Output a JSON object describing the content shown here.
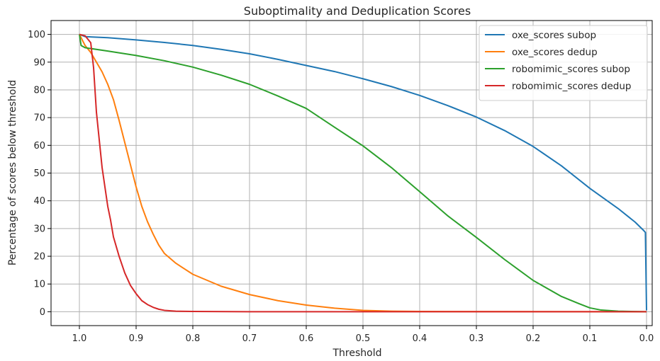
{
  "chart_data": {
    "type": "line",
    "title": "Suboptimality and Deduplication Scores",
    "xlabel": "Threshold",
    "ylabel": "Percentage of scores below threshold",
    "xlim": [
      1.05,
      -0.01
    ],
    "ylim": [
      -5,
      105
    ],
    "x_reversed": true,
    "grid": true,
    "legend_position": "top-right",
    "xticks": [
      1.0,
      0.9,
      0.8,
      0.7,
      0.6,
      0.5,
      0.4,
      0.3,
      0.2,
      0.1,
      0.0
    ],
    "xtick_labels": [
      "1.0",
      "0.9",
      "0.8",
      "0.7",
      "0.6",
      "0.5",
      "0.4",
      "0.3",
      "0.2",
      "0.1",
      "0.0"
    ],
    "yticks": [
      0,
      10,
      20,
      30,
      40,
      50,
      60,
      70,
      80,
      90,
      100
    ],
    "ytick_labels": [
      "0",
      "10",
      "20",
      "30",
      "40",
      "50",
      "60",
      "70",
      "80",
      "90",
      "100"
    ],
    "series": [
      {
        "name": "oxe_scores subop",
        "color": "#1f77b4",
        "points": [
          [
            1.0,
            100
          ],
          [
            0.99,
            99.2
          ],
          [
            0.95,
            98.8
          ],
          [
            0.9,
            98
          ],
          [
            0.85,
            97.1
          ],
          [
            0.8,
            96
          ],
          [
            0.75,
            94.6
          ],
          [
            0.7,
            93
          ],
          [
            0.65,
            91
          ],
          [
            0.6,
            88.8
          ],
          [
            0.55,
            86.6
          ],
          [
            0.5,
            84
          ],
          [
            0.45,
            81.2
          ],
          [
            0.4,
            78
          ],
          [
            0.35,
            74.3
          ],
          [
            0.3,
            70.2
          ],
          [
            0.25,
            65.3
          ],
          [
            0.2,
            59.6
          ],
          [
            0.15,
            52.6
          ],
          [
            0.1,
            44.5
          ],
          [
            0.05,
            37.2
          ],
          [
            0.02,
            32.3
          ],
          [
            0.005,
            29.3
          ],
          [
            0.002,
            28.6
          ],
          [
            0.0,
            0.5
          ]
        ]
      },
      {
        "name": "oxe_scores dedup",
        "color": "#ff7f0e",
        "points": [
          [
            1.0,
            100
          ],
          [
            0.99,
            96
          ],
          [
            0.98,
            93.5
          ],
          [
            0.97,
            90
          ],
          [
            0.96,
            86.5
          ],
          [
            0.95,
            82
          ],
          [
            0.94,
            76.5
          ],
          [
            0.93,
            69
          ],
          [
            0.92,
            61
          ],
          [
            0.91,
            53
          ],
          [
            0.9,
            45
          ],
          [
            0.89,
            38
          ],
          [
            0.88,
            32.5
          ],
          [
            0.87,
            28
          ],
          [
            0.86,
            24
          ],
          [
            0.85,
            21
          ],
          [
            0.83,
            17.5
          ],
          [
            0.8,
            13.5
          ],
          [
            0.75,
            9.2
          ],
          [
            0.7,
            6.2
          ],
          [
            0.65,
            4
          ],
          [
            0.6,
            2.4
          ],
          [
            0.55,
            1.3
          ],
          [
            0.5,
            0.5
          ],
          [
            0.45,
            0.2
          ],
          [
            0.4,
            0.1
          ],
          [
            0.0,
            0
          ]
        ]
      },
      {
        "name": "robomimic_scores subop",
        "color": "#2ca02c",
        "points": [
          [
            1.0,
            100
          ],
          [
            0.997,
            96
          ],
          [
            0.99,
            95.2
          ],
          [
            0.95,
            94
          ],
          [
            0.9,
            92.4
          ],
          [
            0.85,
            90.5
          ],
          [
            0.8,
            88.2
          ],
          [
            0.75,
            85.3
          ],
          [
            0.7,
            82
          ],
          [
            0.65,
            77.8
          ],
          [
            0.6,
            73.3
          ],
          [
            0.55,
            66.5
          ],
          [
            0.5,
            59.8
          ],
          [
            0.45,
            52
          ],
          [
            0.4,
            43.3
          ],
          [
            0.35,
            34.5
          ],
          [
            0.3,
            26.8
          ],
          [
            0.25,
            18.8
          ],
          [
            0.2,
            11.3
          ],
          [
            0.15,
            5.5
          ],
          [
            0.12,
            3
          ],
          [
            0.1,
            1.4
          ],
          [
            0.08,
            0.6
          ],
          [
            0.05,
            0.2
          ],
          [
            0.0,
            0
          ]
        ]
      },
      {
        "name": "robomimic_scores dedup",
        "color": "#d62728",
        "points": [
          [
            1.0,
            100
          ],
          [
            0.99,
            99.5
          ],
          [
            0.98,
            97
          ],
          [
            0.975,
            88
          ],
          [
            0.97,
            72
          ],
          [
            0.965,
            62
          ],
          [
            0.96,
            52
          ],
          [
            0.955,
            45
          ],
          [
            0.95,
            38
          ],
          [
            0.945,
            33
          ],
          [
            0.94,
            27
          ],
          [
            0.93,
            20
          ],
          [
            0.92,
            14
          ],
          [
            0.91,
            9.5
          ],
          [
            0.9,
            6.5
          ],
          [
            0.89,
            4
          ],
          [
            0.88,
            2.6
          ],
          [
            0.87,
            1.6
          ],
          [
            0.86,
            0.9
          ],
          [
            0.85,
            0.5
          ],
          [
            0.83,
            0.2
          ],
          [
            0.8,
            0.1
          ],
          [
            0.7,
            0
          ],
          [
            0.0,
            0
          ]
        ]
      }
    ]
  }
}
